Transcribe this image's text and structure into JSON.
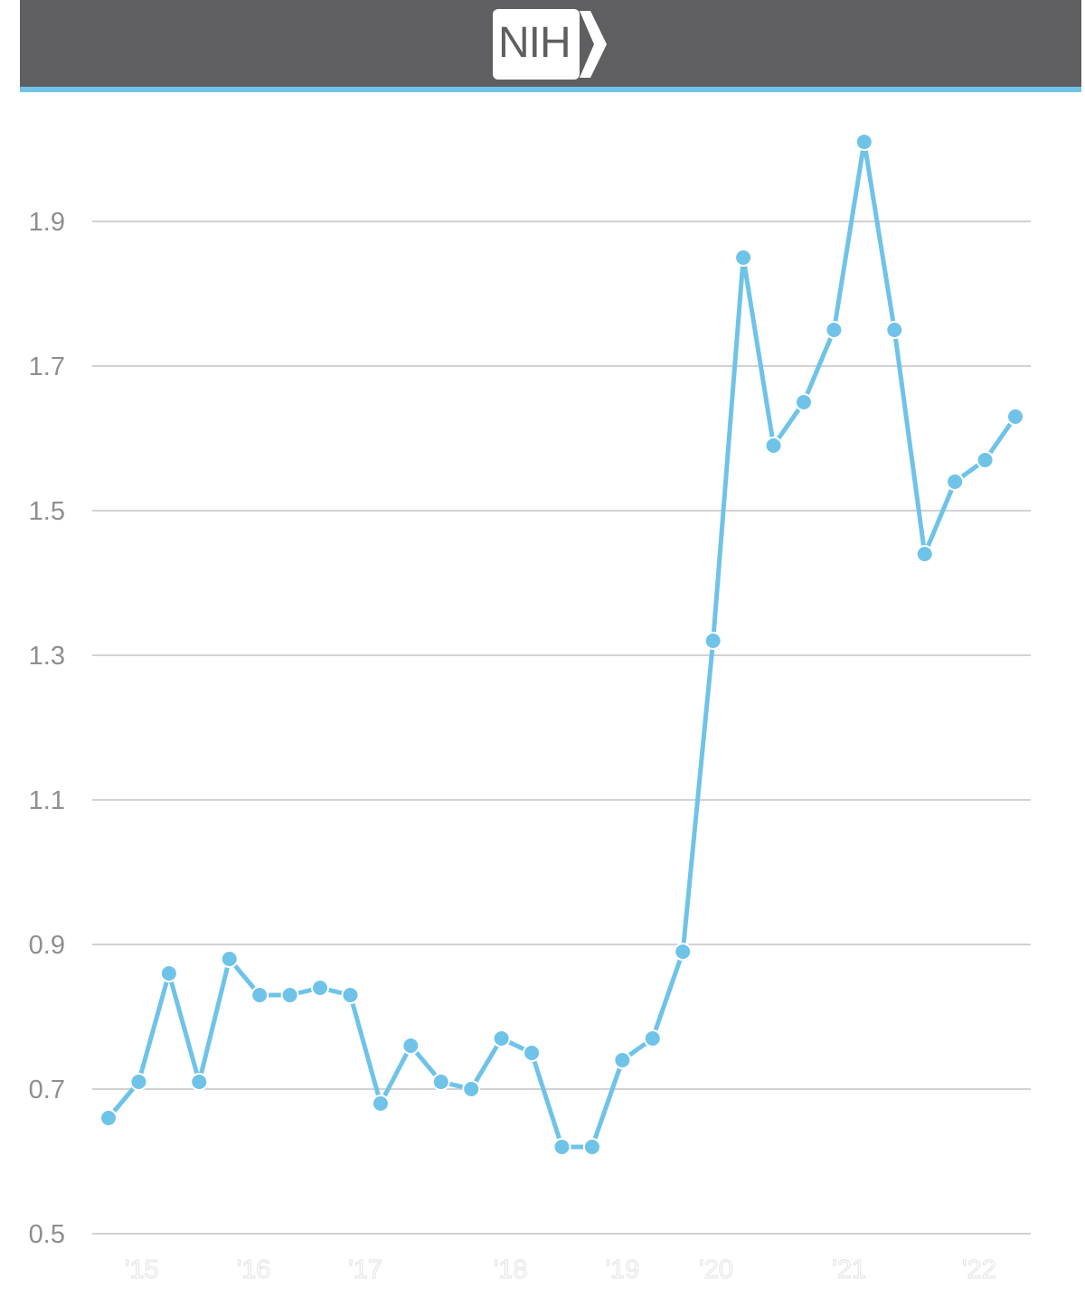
{
  "header": {
    "logo_text": "NIH",
    "logo_icon": "nih-chevron-logo",
    "bar_color": "#5f5e61",
    "accent_color": "#6fc3e8"
  },
  "chart_data": {
    "type": "line",
    "title": "",
    "xlabel": "",
    "ylabel": "",
    "ylim": [
      0.5,
      2.05
    ],
    "yticks": [
      0.5,
      0.7,
      0.9,
      1.1,
      1.3,
      1.5,
      1.7,
      1.9
    ],
    "ytick_labels": [
      "0.5",
      "0.7",
      "0.9",
      "1.1",
      "1.3",
      "1.5",
      "1.7",
      "1.9"
    ],
    "xtick_labels": [
      "'15",
      "'16",
      "'17",
      "'18",
      "'19",
      "'20",
      "'21",
      "'22"
    ],
    "xtick_positions": [
      1.1,
      4.8,
      8.5,
      13.3,
      17.0,
      20.1,
      24.5,
      28.8
    ],
    "grid": true,
    "line_color": "#6fc3e8",
    "series": [
      {
        "x": [
          0,
          1,
          2,
          3,
          4,
          5,
          6,
          7,
          8,
          9,
          10,
          11,
          12,
          13,
          14,
          15,
          16,
          17,
          18,
          19,
          20,
          21,
          22,
          23,
          24,
          25,
          26,
          27,
          28,
          29,
          30
        ],
        "values": [
          0.66,
          0.71,
          0.86,
          0.71,
          0.88,
          0.83,
          0.83,
          0.84,
          0.83,
          0.68,
          0.76,
          0.71,
          0.7,
          0.77,
          0.75,
          0.62,
          0.62,
          0.74,
          0.77,
          0.89,
          1.32,
          1.85,
          1.59,
          1.65,
          1.75,
          2.01,
          1.75,
          1.44,
          1.54,
          1.57,
          1.63
        ]
      }
    ]
  }
}
